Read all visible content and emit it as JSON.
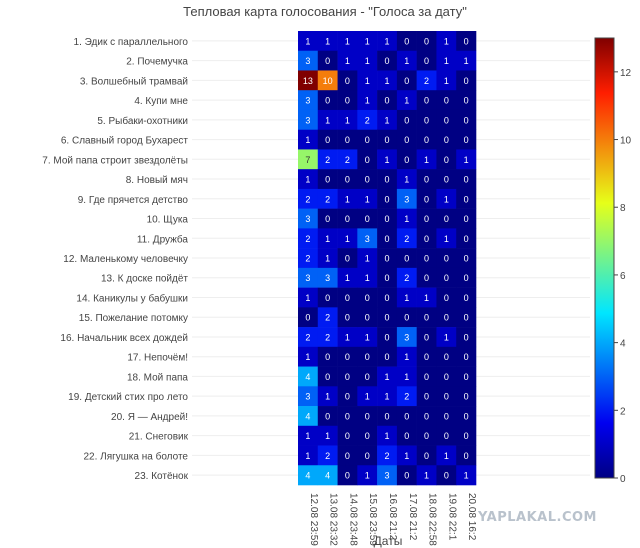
{
  "chart_data": {
    "type": "heatmap",
    "title": "Тепловая карта голосования - \"Голоса за дату\"",
    "xlabel": "Даты",
    "ylabel": "",
    "x": [
      "12.08 23:59",
      "13.08 23:32",
      "14.08 23:48",
      "15.08 23:59",
      "16.08 21:2",
      "17.08 21:2",
      "18.08 22:58",
      "19.08 22:1",
      "20.08 16:2"
    ],
    "y": [
      "1. Эдик с параллельного",
      "2. Почемучка",
      "3. Волшебный трамвай",
      "4. Купи мне",
      "5. Рыбаки-охотники",
      "6. Славный город Бухарест",
      "7. Мой папа строит звездолёты",
      "8. Новый мяч",
      "9. Где прячется детство",
      "10. Щука",
      "11. Дружба",
      "12. Маленькому человечку",
      "13. К доске пойдёт",
      "14. Каникулы у бабушки",
      "15. Пожелание потомку",
      "16. Начальник всех дождей",
      "17. Непочём!",
      "18. Мой папа",
      "19. Детский стих про лето",
      "20. Я — Андрей!",
      "21. Снеговик",
      "22. Лягушка на болоте",
      "23. Котёнок"
    ],
    "z": [
      [
        1,
        1,
        1,
        1,
        1,
        0,
        0,
        1,
        0
      ],
      [
        3,
        0,
        1,
        1,
        0,
        1,
        0,
        1,
        1
      ],
      [
        13,
        10,
        0,
        1,
        1,
        0,
        2,
        1,
        0
      ],
      [
        3,
        0,
        0,
        1,
        0,
        1,
        0,
        0,
        0
      ],
      [
        3,
        1,
        1,
        2,
        1,
        0,
        0,
        0,
        0
      ],
      [
        1,
        0,
        0,
        0,
        0,
        0,
        0,
        0,
        0
      ],
      [
        7,
        2,
        2,
        0,
        1,
        0,
        1,
        0,
        1
      ],
      [
        1,
        0,
        0,
        0,
        0,
        1,
        0,
        0,
        0
      ],
      [
        2,
        2,
        1,
        1,
        0,
        3,
        0,
        1,
        0
      ],
      [
        3,
        0,
        0,
        0,
        0,
        1,
        0,
        0,
        0
      ],
      [
        2,
        1,
        1,
        3,
        0,
        2,
        0,
        1,
        0
      ],
      [
        2,
        1,
        0,
        1,
        0,
        0,
        0,
        0,
        0
      ],
      [
        3,
        3,
        1,
        1,
        0,
        2,
        0,
        0,
        0
      ],
      [
        1,
        0,
        0,
        0,
        0,
        1,
        1,
        0,
        0
      ],
      [
        0,
        2,
        0,
        0,
        0,
        0,
        0,
        0,
        0
      ],
      [
        2,
        2,
        1,
        1,
        0,
        3,
        0,
        1,
        0
      ],
      [
        1,
        0,
        0,
        0,
        0,
        1,
        0,
        0,
        0
      ],
      [
        4,
        0,
        0,
        0,
        1,
        1,
        0,
        0,
        0
      ],
      [
        3,
        1,
        0,
        1,
        1,
        2,
        0,
        0,
        0
      ],
      [
        4,
        0,
        0,
        0,
        0,
        0,
        0,
        0,
        0
      ],
      [
        1,
        1,
        0,
        0,
        1,
        0,
        0,
        0,
        0
      ],
      [
        1,
        2,
        0,
        0,
        2,
        1,
        0,
        1,
        0
      ],
      [
        4,
        4,
        0,
        1,
        3,
        0,
        1,
        0,
        1
      ]
    ],
    "zlim": [
      0,
      13
    ],
    "colorbar_ticks": [
      0,
      2,
      4,
      6,
      8,
      10,
      12
    ],
    "colorscale": "jet",
    "grid": false,
    "legend": "colorbar right"
  },
  "watermark": "YAPLAKAL.COM"
}
